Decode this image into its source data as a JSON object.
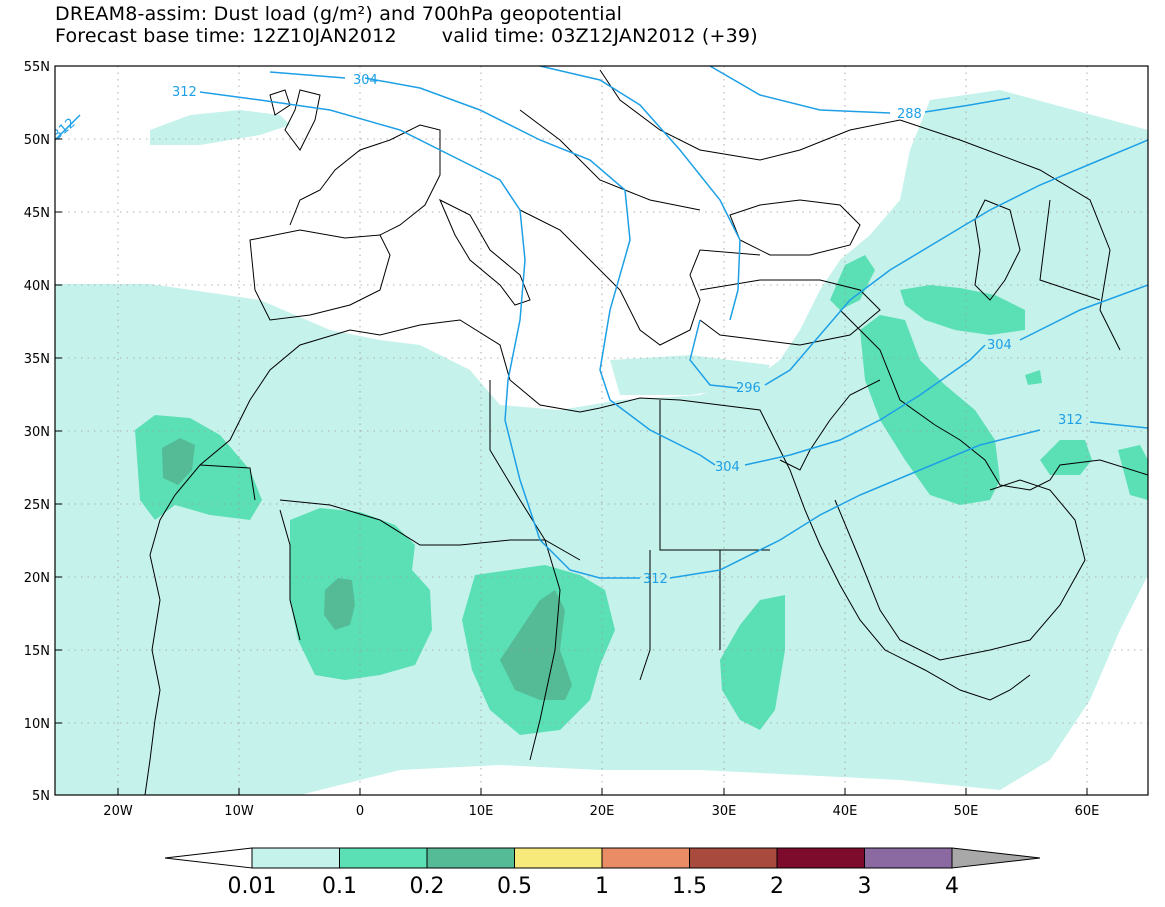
{
  "title": {
    "line1": "DREAM8-assim: Dust load (g/m²) and 700hPa geopotential",
    "line2_left": "Forecast base time: 12Z10JAN2012",
    "line2_right": "valid time: 03Z12JAN2012 (+39)"
  },
  "axes": {
    "lat_labels": [
      "55N",
      "50N",
      "45N",
      "40N",
      "35N",
      "30N",
      "25N",
      "20N",
      "15N",
      "10N",
      "5N"
    ],
    "lon_labels": [
      "20W",
      "10W",
      "0",
      "10E",
      "20E",
      "30E",
      "40E",
      "50E",
      "60E"
    ]
  },
  "contours": {
    "labels": [
      "312",
      "304",
      "312",
      "288",
      "304",
      "296",
      "304",
      "312",
      "312"
    ]
  },
  "colorbar": {
    "levels": [
      "0.01",
      "0.1",
      "0.2",
      "0.5",
      "1",
      "1.5",
      "2",
      "3",
      "4"
    ],
    "colors": [
      "#c6f2ec",
      "#5be0b5",
      "#55bb97",
      "#f7ea7a",
      "#ea8c66",
      "#a94a3e",
      "#7d0b2c",
      "#8b6aa2"
    ],
    "under_color": "#ffffff",
    "over_color": "#a8a8a8"
  }
}
